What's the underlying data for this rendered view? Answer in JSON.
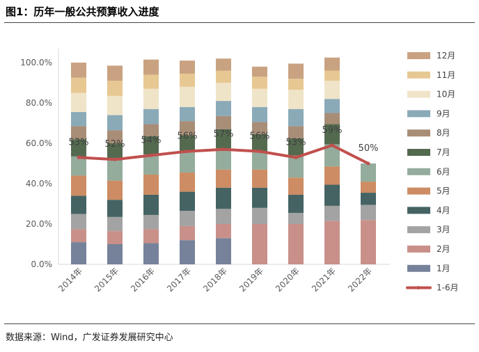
{
  "figure": {
    "title": "图1：历年一般公共预算收入进度",
    "source": "数据来源：Wind，广发证券发展研究中心"
  },
  "chart_data": {
    "type": "bar",
    "stacked": true,
    "categories": [
      "2014年",
      "2015年",
      "2016年",
      "2017年",
      "2018年",
      "2019年",
      "2020年",
      "2021年",
      "2022年"
    ],
    "ylim": [
      0,
      100
    ],
    "yticks": [
      "0.0%",
      "20.0%",
      "40.0%",
      "60.0%",
      "80.0%",
      "100.0%"
    ],
    "ytick_values": [
      0,
      20,
      40,
      60,
      80,
      100
    ],
    "grid": false,
    "legend_position": "right",
    "series": [
      {
        "name": "1月",
        "color": "#76829a",
        "values": [
          11,
          10,
          10.5,
          12,
          13,
          0,
          0,
          0,
          0
        ]
      },
      {
        "name": "2月",
        "color": "#c9908a",
        "values": [
          6.5,
          6.5,
          7,
          7,
          7,
          20,
          20,
          21.5,
          22
        ]
      },
      {
        "name": "3月",
        "color": "#a3a3a3",
        "values": [
          7.5,
          7,
          7,
          7.5,
          7.5,
          8,
          5.5,
          7.5,
          7.5
        ]
      },
      {
        "name": "4月",
        "color": "#456363",
        "values": [
          9,
          8.5,
          10,
          9.5,
          10.5,
          10,
          9,
          10.5,
          6
        ]
      },
      {
        "name": "5月",
        "color": "#cd8c63",
        "values": [
          10,
          9.5,
          10,
          9.5,
          9,
          9,
          8.5,
          9,
          5.5
        ]
      },
      {
        "name": "6月",
        "color": "#94ac9c",
        "values": [
          9.5,
          10,
          10,
          10,
          10.5,
          9,
          11,
          11,
          9
        ]
      },
      {
        "name": "7月",
        "color": "#546a4f",
        "values": [
          8.5,
          8.5,
          9,
          8.5,
          9.5,
          8.5,
          8.5,
          10,
          0
        ]
      },
      {
        "name": "8月",
        "color": "#a88d77",
        "values": [
          6.5,
          6.5,
          6,
          7,
          6.5,
          6,
          6,
          5.5,
          0
        ]
      },
      {
        "name": "9月",
        "color": "#8aaab8",
        "values": [
          7,
          7.5,
          7.5,
          7,
          7.5,
          7.5,
          8.5,
          7,
          0
        ]
      },
      {
        "name": "10月",
        "color": "#f0e4c8",
        "values": [
          9.5,
          9.5,
          10,
          10,
          9,
          9,
          9.5,
          9,
          0
        ]
      },
      {
        "name": "11月",
        "color": "#e7c893",
        "values": [
          7.5,
          7.5,
          7,
          6.5,
          6,
          6,
          5.5,
          5,
          0
        ]
      },
      {
        "name": "12月",
        "color": "#c9a281",
        "values": [
          7.5,
          7.5,
          7.5,
          6.5,
          6,
          5,
          7.5,
          6.5,
          0
        ]
      }
    ],
    "line_series": {
      "name": "1-6月",
      "color": "#c0504d",
      "values": [
        53,
        52,
        54,
        56,
        57,
        56,
        53,
        59,
        50
      ],
      "labels": [
        "53%",
        "52%",
        "54%",
        "56%",
        "57%",
        "56%",
        "53%",
        "59%",
        "50%"
      ]
    }
  }
}
